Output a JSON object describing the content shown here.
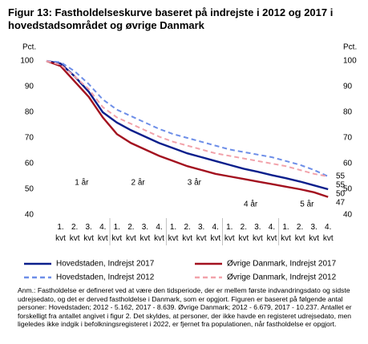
{
  "chart_data": {
    "type": "line",
    "title": "Figur 13: Fastholdelseskurve baseret på indrejste i 2012 og 2017 i hovedstadsområdet og øvrige Danmark",
    "ylabel": "Pct.",
    "y2label": "Pct.",
    "categories": [
      null,
      "1. kvt",
      "2. kvt",
      "3. kvt",
      "4. kvt",
      "1. kvt",
      "2. kvt",
      "3. kvt",
      "4. kvt",
      "1. kvt",
      "2. kvt",
      "3. kvt",
      "4. kvt",
      "1. kvt",
      "2. kvt",
      "3. kvt",
      "4. kvt",
      "1. kvt",
      "2. kvt",
      "3. kvt",
      "4. kvt"
    ],
    "groups": [
      "1 år",
      "2 år",
      "3 år",
      "4 år",
      "5 år"
    ],
    "series": [
      {
        "name": "Hovedstaden,  Indrejst 2017",
        "color": "#0b1f8c",
        "dash": false,
        "values": [
          100,
          99,
          94,
          88,
          80,
          76,
          73,
          70.5,
          68,
          66,
          64,
          62.5,
          61,
          59.5,
          58,
          56.8,
          55.5,
          54.3,
          53,
          51.5,
          50
        ]
      },
      {
        "name": "Øvrige Danmark,  Indrejst 2017",
        "color": "#a3111f",
        "dash": false,
        "values": [
          100,
          98,
          92,
          86,
          78,
          71.5,
          68,
          65.5,
          63,
          61,
          59,
          57.5,
          56,
          55,
          54,
          53,
          52,
          51,
          50,
          48.8,
          47
        ]
      },
      {
        "name": "Hovedstaden,  Indrejst 2012",
        "color": "#6d8ee8",
        "dash": true,
        "values": [
          100,
          99.5,
          96,
          91,
          85,
          81,
          78.5,
          76,
          73.5,
          71.5,
          70,
          68.5,
          67,
          65.5,
          64.5,
          63.5,
          62.5,
          61,
          59.5,
          57.5,
          55
        ]
      },
      {
        "name": "Øvrige Danmark,  Indrejst 2012",
        "color": "#f2a2aa",
        "dash": true,
        "values": [
          100,
          98.5,
          94,
          89,
          82,
          78,
          75.5,
          73,
          70.5,
          68.5,
          67,
          65.5,
          64,
          63,
          62,
          61,
          60,
          59,
          57.5,
          56,
          55
        ]
      }
    ],
    "ylim": [
      40,
      100
    ],
    "yticks": [
      40,
      50,
      60,
      70,
      80,
      90,
      100
    ],
    "y2lim": [
      40,
      100
    ],
    "y2ticks": [
      40,
      50,
      60,
      70,
      80,
      90,
      100
    ],
    "grid": false,
    "legend": "bottom",
    "note": "Anm.: Fastholdelse er defineret ved at være den tidsperiode, der er mellem første indvandringsdato og sidste udrejsedato, og det er derved fastholdelse i Danmark, som er opgjort. Figuren er baseret på følgende antal personer: Hovedstaden; 2012 - 5.162, 2017 - 8.639. Øvrige Danmark; 2012 - 6.679, 2017 - 10.237. Antallet er forskelligt fra antallet angivet i figur 2. Det skyldes, at personer, der ikke havde en registeret udrejsedato, men ligeledes ikke indgik i befolkningsregisteret i 2022, er fjernet fra populationen, når fastholdelse er opgjort."
  }
}
